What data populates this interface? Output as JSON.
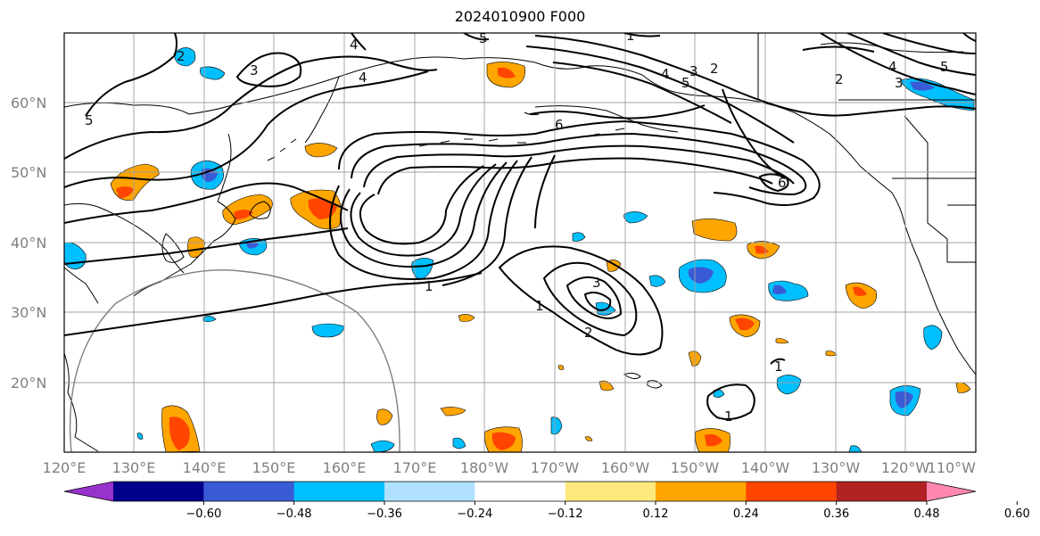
{
  "title": "2024010900 F000",
  "map": {
    "lat_labels": [
      "60°N",
      "50°N",
      "40°N",
      "30°N",
      "20°N"
    ],
    "lon_labels": [
      "120°E",
      "130°E",
      "140°E",
      "150°E",
      "160°E",
      "170°E",
      "180°W",
      "170°W",
      "160°W",
      "150°W",
      "140°W",
      "130°W",
      "120°W",
      "110°W"
    ],
    "contour_labels": [
      "5",
      "4",
      "3",
      "4",
      "5",
      "5",
      "4",
      "3",
      "2",
      "1",
      "6",
      "2",
      "3",
      "4",
      "5",
      "2",
      "6",
      "1",
      "1",
      "2",
      "3",
      "1",
      "1"
    ],
    "colorbar": {
      "tick_labels": [
        "−0.60",
        "−0.48",
        "−0.36",
        "−0.24",
        "−0.12",
        "0.12",
        "0.24",
        "0.36",
        "0.48",
        "0.60"
      ],
      "colors": [
        "#9932cc",
        "#00008b",
        "#3a5bd6",
        "#00bfff",
        "#b0e0ff",
        "#ffffff",
        "#ffe97f",
        "#ffa500",
        "#ff4500",
        "#b22222",
        "#ff88b0"
      ]
    },
    "colors": {
      "contour": "#000000",
      "grid": "#a0a0a0",
      "coast": "#000000",
      "circle": "#808080"
    }
  }
}
